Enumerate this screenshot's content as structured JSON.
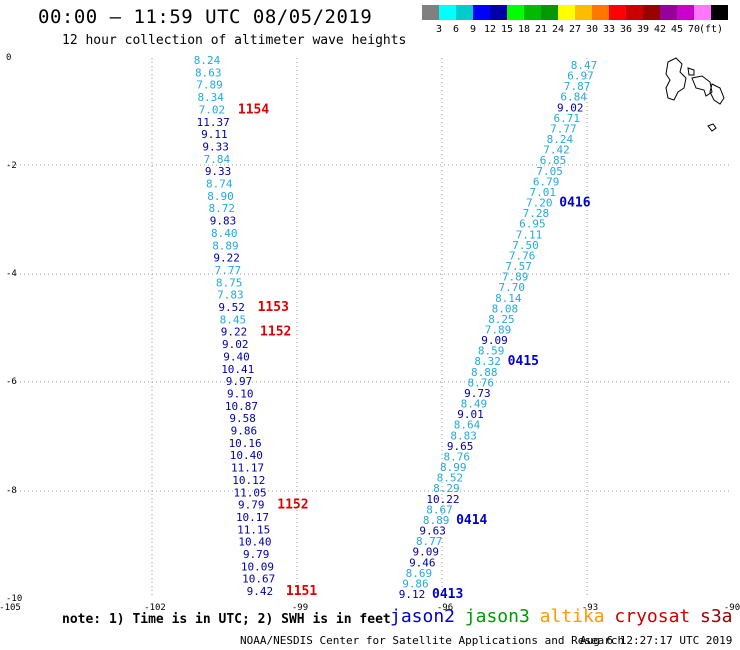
{
  "header": {
    "title": "00:00 – 11:59 UTC 08/05/2019",
    "subtitle": "12 hour collection of altimeter wave heights"
  },
  "scale": {
    "colors": [
      "#808080",
      "#00ffff",
      "#00cccc",
      "#0000ff",
      "#0000aa",
      "#00ff00",
      "#00bb00",
      "#009900",
      "#ffff00",
      "#ffbb00",
      "#ff7700",
      "#ff0000",
      "#cc0000",
      "#990000",
      "#990099",
      "#cc00cc",
      "#ff77ff",
      "#000000"
    ],
    "labels": [
      "3",
      "6",
      "9",
      "12",
      "15",
      "18",
      "21",
      "24",
      "27",
      "30",
      "33",
      "36",
      "39",
      "42",
      "45",
      "70",
      "(ft)"
    ]
  },
  "axes": {
    "lon_labels": [
      "-105",
      "-102",
      "-99",
      "-96",
      "-93",
      "-90"
    ],
    "lat_labels": [
      "0",
      "-2",
      "-4",
      "-6",
      "-8",
      "-10"
    ]
  },
  "colors": {
    "light_track": "#22aadd",
    "dark_track": "#0000aa",
    "time_red": "#dd0000",
    "time_blue": "#0000cc"
  },
  "track_west": {
    "values": [
      "8.24",
      "8.63",
      "7.89",
      "8.34",
      "7.02",
      "11.37",
      "9.11",
      "9.33",
      "7.84",
      "9.33",
      "8.74",
      "8.90",
      "8.72",
      "9.83",
      "8.40",
      "8.89",
      "9.22",
      "7.77",
      "8.75",
      "7.83",
      "9.52",
      "8.45",
      "9.22",
      "9.02",
      "9.40",
      "10.41",
      "9.97",
      "9.10",
      "10.87",
      "9.58",
      "9.86",
      "10.16",
      "10.40",
      "11.17",
      "10.12",
      "11.05",
      "9.79",
      "10.17",
      "11.15",
      "10.40",
      "9.79",
      "10.09",
      "10.67",
      "9.42"
    ],
    "light_flags": [
      1,
      1,
      1,
      1,
      1,
      0,
      0,
      0,
      1,
      0,
      1,
      1,
      1,
      0,
      1,
      1,
      0,
      1,
      1,
      1,
      0,
      1,
      0,
      0,
      0,
      0,
      0,
      0,
      0,
      0,
      0,
      0,
      0,
      0,
      0,
      0,
      0,
      0,
      0,
      0,
      0,
      0,
      0,
      0
    ],
    "times": [
      {
        "label": "1154",
        "index": 4
      },
      {
        "label": "1153",
        "index": 20
      },
      {
        "label": "1152",
        "index": 22
      },
      {
        "label": "1152",
        "index": 36
      },
      {
        "label": "1151",
        "index": 43
      }
    ]
  },
  "track_east": {
    "values": [
      "8.47",
      "6.97",
      "7.87",
      "6.84",
      "9.02",
      "6.71",
      "7.77",
      "8.24",
      "7.42",
      "6.85",
      "7.05",
      "6.79",
      "7.01",
      "7.20",
      "7.28",
      "6.95",
      "7.11",
      "7.50",
      "7.76",
      "7.57",
      "7.89",
      "7.70",
      "8.14",
      "8.08",
      "8.25",
      "7.89",
      "9.09",
      "8.59",
      "8.32",
      "8.88",
      "8.76",
      "9.73",
      "8.49",
      "9.01",
      "8.64",
      "8.83",
      "9.65",
      "8.76",
      "8.99",
      "8.52",
      "8.29",
      "10.22",
      "8.67",
      "8.89",
      "9.63",
      "8.77",
      "9.09",
      "9.46",
      "8.69",
      "9.86",
      "9.12"
    ],
    "light_flags": [
      1,
      1,
      1,
      1,
      0,
      1,
      1,
      1,
      1,
      1,
      1,
      1,
      1,
      1,
      1,
      1,
      1,
      1,
      1,
      1,
      1,
      1,
      1,
      1,
      1,
      1,
      0,
      1,
      1,
      1,
      1,
      0,
      1,
      0,
      1,
      1,
      0,
      1,
      1,
      1,
      1,
      0,
      1,
      1,
      0,
      1,
      0,
      0,
      1,
      1,
      0
    ],
    "times": [
      {
        "label": "0416",
        "index": 13
      },
      {
        "label": "0415",
        "index": 28
      },
      {
        "label": "0414",
        "index": 43
      },
      {
        "label": "0413",
        "index": 50
      }
    ]
  },
  "footer": {
    "note": "note: 1) Time is in UTC; 2) SWH is in feet",
    "satellites": [
      {
        "name": "jason2",
        "color": "#0000cc"
      },
      {
        "name": "jason3",
        "color": "#009900"
      },
      {
        "name": "altika",
        "color": "#ff9900"
      },
      {
        "name": "cryosat",
        "color": "#cc0000"
      },
      {
        "name": "s3a",
        "color": "#990000"
      }
    ],
    "credit": "NOAA/NESDIS Center for Satellite Applications and Research",
    "timestamp": "Aug  6 12:27:17 UTC 2019"
  }
}
